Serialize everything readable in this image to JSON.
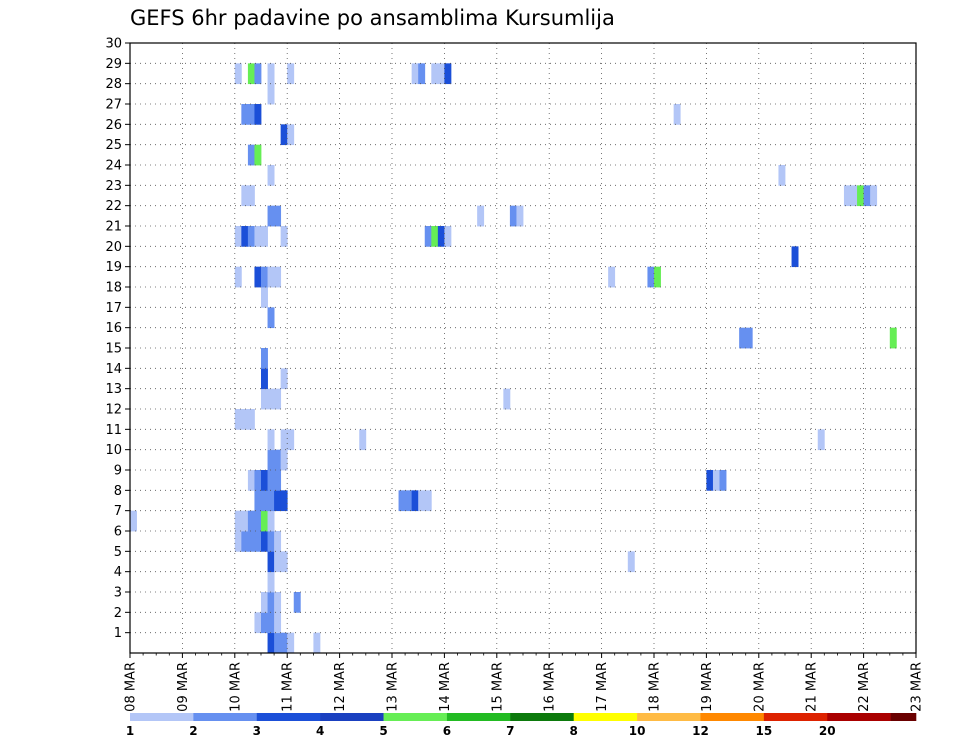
{
  "chart_data": {
    "type": "heatmap",
    "title": "GEFS 6hr padavine po ansamblima Kursumlija",
    "x_tick_labels": [
      "08 MAR",
      "09 MAR",
      "10 MAR",
      "11 MAR",
      "12 MAR",
      "13 MAR",
      "14 MAR",
      "15 MAR",
      "16 MAR",
      "17 MAR",
      "18 MAR",
      "19 MAR",
      "20 MAR",
      "21 MAR",
      "22 MAR",
      "23 MAR"
    ],
    "y_tick_labels": [
      "1",
      "2",
      "3",
      "4",
      "5",
      "6",
      "7",
      "8",
      "9",
      "10",
      "11",
      "12",
      "13",
      "14",
      "15",
      "16",
      "17",
      "18",
      "19",
      "20",
      "21",
      "22",
      "23",
      "24",
      "25",
      "26",
      "27",
      "28",
      "29",
      "30"
    ],
    "x_range": [
      "08 MAR 00Z",
      "23 MAR 00Z"
    ],
    "y_range": [
      0,
      30
    ],
    "grid": true,
    "colorbar": {
      "labels": [
        "1",
        "2",
        "3",
        "4",
        "5",
        "6",
        "7",
        "8",
        "10",
        "12",
        "15",
        "20"
      ],
      "colors": [
        "#b3c6f7",
        "#6690f0",
        "#1b4fd8",
        "#1a40c0",
        "#66ee55",
        "#22bb22",
        "#0c7a0c",
        "#ffff00",
        "#ffbb44",
        "#ff8800",
        "#dd2200",
        "#aa0000",
        "#6a0000"
      ]
    },
    "color_classes": {
      "a": "1-2 mm",
      "b": "2-3 mm",
      "c": "3-4 mm",
      "g": "4-5 mm"
    },
    "cells": [
      {
        "member": 0,
        "step": 21,
        "cls": "c"
      },
      {
        "member": 0,
        "step": 22,
        "cls": "b"
      },
      {
        "member": 0,
        "step": 23,
        "cls": "b"
      },
      {
        "member": 0,
        "step": 24,
        "cls": "a"
      },
      {
        "member": 0,
        "step": 28,
        "cls": "a"
      },
      {
        "member": 1,
        "step": 19,
        "cls": "a"
      },
      {
        "member": 1,
        "step": 20,
        "cls": "b"
      },
      {
        "member": 1,
        "step": 21,
        "cls": "b"
      },
      {
        "member": 1,
        "step": 22,
        "cls": "a"
      },
      {
        "member": 2,
        "step": 20,
        "cls": "a"
      },
      {
        "member": 2,
        "step": 21,
        "cls": "b"
      },
      {
        "member": 2,
        "step": 22,
        "cls": "a"
      },
      {
        "member": 2,
        "step": 25,
        "cls": "b"
      },
      {
        "member": 3,
        "step": 21,
        "cls": "a"
      },
      {
        "member": 4,
        "step": 21,
        "cls": "c"
      },
      {
        "member": 4,
        "step": 22,
        "cls": "a"
      },
      {
        "member": 4,
        "step": 23,
        "cls": "a"
      },
      {
        "member": 4,
        "step": 76,
        "cls": "a"
      },
      {
        "member": 5,
        "step": 16,
        "cls": "a"
      },
      {
        "member": 5,
        "step": 17,
        "cls": "b"
      },
      {
        "member": 5,
        "step": 18,
        "cls": "b"
      },
      {
        "member": 5,
        "step": 19,
        "cls": "b"
      },
      {
        "member": 5,
        "step": 20,
        "cls": "c"
      },
      {
        "member": 5,
        "step": 21,
        "cls": "b"
      },
      {
        "member": 5,
        "step": 22,
        "cls": "a"
      },
      {
        "member": 6,
        "step": 0,
        "cls": "a"
      },
      {
        "member": 6,
        "step": 16,
        "cls": "a"
      },
      {
        "member": 6,
        "step": 17,
        "cls": "a"
      },
      {
        "member": 6,
        "step": 18,
        "cls": "b"
      },
      {
        "member": 6,
        "step": 19,
        "cls": "b"
      },
      {
        "member": 6,
        "step": 20,
        "cls": "g"
      },
      {
        "member": 6,
        "step": 21,
        "cls": "a"
      },
      {
        "member": 7,
        "step": 19,
        "cls": "b"
      },
      {
        "member": 7,
        "step": 20,
        "cls": "b"
      },
      {
        "member": 7,
        "step": 21,
        "cls": "b"
      },
      {
        "member": 7,
        "step": 22,
        "cls": "c"
      },
      {
        "member": 7,
        "step": 23,
        "cls": "c"
      },
      {
        "member": 7,
        "step": 41,
        "cls": "b"
      },
      {
        "member": 7,
        "step": 42,
        "cls": "b"
      },
      {
        "member": 7,
        "step": 43,
        "cls": "c"
      },
      {
        "member": 7,
        "step": 44,
        "cls": "a"
      },
      {
        "member": 7,
        "step": 45,
        "cls": "a"
      },
      {
        "member": 8,
        "step": 18,
        "cls": "a"
      },
      {
        "member": 8,
        "step": 19,
        "cls": "b"
      },
      {
        "member": 8,
        "step": 20,
        "cls": "c"
      },
      {
        "member": 8,
        "step": 21,
        "cls": "b"
      },
      {
        "member": 8,
        "step": 22,
        "cls": "b"
      },
      {
        "member": 8,
        "step": 88,
        "cls": "c"
      },
      {
        "member": 8,
        "step": 89,
        "cls": "a"
      },
      {
        "member": 8,
        "step": 90,
        "cls": "b"
      },
      {
        "member": 9,
        "step": 21,
        "cls": "b"
      },
      {
        "member": 9,
        "step": 22,
        "cls": "b"
      },
      {
        "member": 9,
        "step": 23,
        "cls": "a"
      },
      {
        "member": 10,
        "step": 21,
        "cls": "a"
      },
      {
        "member": 10,
        "step": 23,
        "cls": "a"
      },
      {
        "member": 10,
        "step": 24,
        "cls": "a"
      },
      {
        "member": 10,
        "step": 35,
        "cls": "a"
      },
      {
        "member": 10,
        "step": 105,
        "cls": "a"
      },
      {
        "member": 11,
        "step": 16,
        "cls": "a"
      },
      {
        "member": 11,
        "step": 17,
        "cls": "a"
      },
      {
        "member": 11,
        "step": 18,
        "cls": "a"
      },
      {
        "member": 12,
        "step": 20,
        "cls": "a"
      },
      {
        "member": 12,
        "step": 21,
        "cls": "a"
      },
      {
        "member": 12,
        "step": 22,
        "cls": "a"
      },
      {
        "member": 12,
        "step": 57,
        "cls": "a"
      },
      {
        "member": 13,
        "step": 20,
        "cls": "c"
      },
      {
        "member": 13,
        "step": 23,
        "cls": "a"
      },
      {
        "member": 14,
        "step": 20,
        "cls": "b"
      },
      {
        "member": 15,
        "step": 93,
        "cls": "b"
      },
      {
        "member": 15,
        "step": 94,
        "cls": "b"
      },
      {
        "member": 15,
        "step": 116,
        "cls": "g"
      },
      {
        "member": 16,
        "step": 21,
        "cls": "b"
      },
      {
        "member": 17,
        "step": 20,
        "cls": "a"
      },
      {
        "member": 18,
        "step": 16,
        "cls": "a"
      },
      {
        "member": 18,
        "step": 19,
        "cls": "c"
      },
      {
        "member": 18,
        "step": 20,
        "cls": "b"
      },
      {
        "member": 18,
        "step": 21,
        "cls": "a"
      },
      {
        "member": 18,
        "step": 22,
        "cls": "a"
      },
      {
        "member": 18,
        "step": 73,
        "cls": "a"
      },
      {
        "member": 18,
        "step": 79,
        "cls": "b"
      },
      {
        "member": 18,
        "step": 80,
        "cls": "g"
      },
      {
        "member": 19,
        "step": 101,
        "cls": "c"
      },
      {
        "member": 20,
        "step": 16,
        "cls": "a"
      },
      {
        "member": 20,
        "step": 17,
        "cls": "c"
      },
      {
        "member": 20,
        "step": 18,
        "cls": "b"
      },
      {
        "member": 20,
        "step": 19,
        "cls": "a"
      },
      {
        "member": 20,
        "step": 20,
        "cls": "a"
      },
      {
        "member": 20,
        "step": 23,
        "cls": "a"
      },
      {
        "member": 20,
        "step": 45,
        "cls": "b"
      },
      {
        "member": 20,
        "step": 46,
        "cls": "g"
      },
      {
        "member": 20,
        "step": 47,
        "cls": "c"
      },
      {
        "member": 20,
        "step": 48,
        "cls": "a"
      },
      {
        "member": 21,
        "step": 21,
        "cls": "b"
      },
      {
        "member": 21,
        "step": 22,
        "cls": "b"
      },
      {
        "member": 21,
        "step": 53,
        "cls": "a"
      },
      {
        "member": 21,
        "step": 58,
        "cls": "b"
      },
      {
        "member": 21,
        "step": 59,
        "cls": "a"
      },
      {
        "member": 22,
        "step": 17,
        "cls": "a"
      },
      {
        "member": 22,
        "step": 18,
        "cls": "a"
      },
      {
        "member": 22,
        "step": 109,
        "cls": "a"
      },
      {
        "member": 22,
        "step": 110,
        "cls": "a"
      },
      {
        "member": 22,
        "step": 111,
        "cls": "g"
      },
      {
        "member": 22,
        "step": 112,
        "cls": "b"
      },
      {
        "member": 22,
        "step": 113,
        "cls": "a"
      },
      {
        "member": 23,
        "step": 21,
        "cls": "a"
      },
      {
        "member": 23,
        "step": 99,
        "cls": "a"
      },
      {
        "member": 24,
        "step": 18,
        "cls": "b"
      },
      {
        "member": 24,
        "step": 19,
        "cls": "g"
      },
      {
        "member": 25,
        "step": 23,
        "cls": "c"
      },
      {
        "member": 25,
        "step": 24,
        "cls": "a"
      },
      {
        "member": 26,
        "step": 17,
        "cls": "b"
      },
      {
        "member": 26,
        "step": 18,
        "cls": "b"
      },
      {
        "member": 26,
        "step": 19,
        "cls": "c"
      },
      {
        "member": 26,
        "step": 83,
        "cls": "a"
      },
      {
        "member": 27,
        "step": 21,
        "cls": "a"
      },
      {
        "member": 28,
        "step": 16,
        "cls": "a"
      },
      {
        "member": 28,
        "step": 18,
        "cls": "g"
      },
      {
        "member": 28,
        "step": 19,
        "cls": "b"
      },
      {
        "member": 28,
        "step": 21,
        "cls": "a"
      },
      {
        "member": 28,
        "step": 24,
        "cls": "a"
      },
      {
        "member": 28,
        "step": 43,
        "cls": "a"
      },
      {
        "member": 28,
        "step": 44,
        "cls": "b"
      },
      {
        "member": 28,
        "step": 46,
        "cls": "a"
      },
      {
        "member": 28,
        "step": 47,
        "cls": "a"
      },
      {
        "member": 28,
        "step": 48,
        "cls": "c"
      }
    ]
  }
}
